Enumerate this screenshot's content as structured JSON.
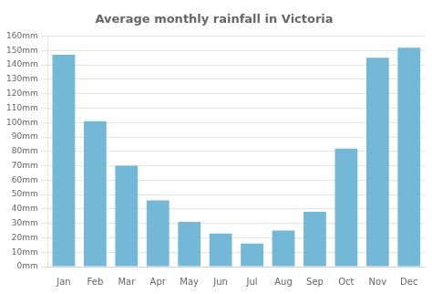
{
  "chart_data": {
    "type": "bar",
    "title": "Average monthly rainfall in Victoria",
    "categories": [
      "Jan",
      "Feb",
      "Mar",
      "Apr",
      "May",
      "Jun",
      "Jul",
      "Aug",
      "Sep",
      "Oct",
      "Nov",
      "Dec"
    ],
    "values": [
      147,
      101,
      70,
      46,
      31,
      23,
      16,
      25,
      38,
      82,
      145,
      152
    ],
    "color": "#74b8d8",
    "ylim": [
      0,
      160
    ],
    "yticks": [
      {
        "value": 0,
        "label": "0mm"
      },
      {
        "value": 10,
        "label": "10mm"
      },
      {
        "value": 20,
        "label": "20mm"
      },
      {
        "value": 30,
        "label": "30mm"
      },
      {
        "value": 40,
        "label": "40mm"
      },
      {
        "value": 50,
        "label": "50mm"
      },
      {
        "value": 60,
        "label": "60mm"
      },
      {
        "value": 70,
        "label": "70mm"
      },
      {
        "value": 80,
        "label": "80mm"
      },
      {
        "value": 90,
        "label": "90mm"
      },
      {
        "value": 100,
        "label": "100mm"
      },
      {
        "value": 110,
        "label": "110mm"
      },
      {
        "value": 120,
        "label": "120mm"
      },
      {
        "value": 130,
        "label": "130mm"
      },
      {
        "value": 140,
        "label": "140mm"
      },
      {
        "value": 150,
        "label": "150mm"
      },
      {
        "value": 160,
        "label": "160mm"
      }
    ],
    "grid": true
  }
}
